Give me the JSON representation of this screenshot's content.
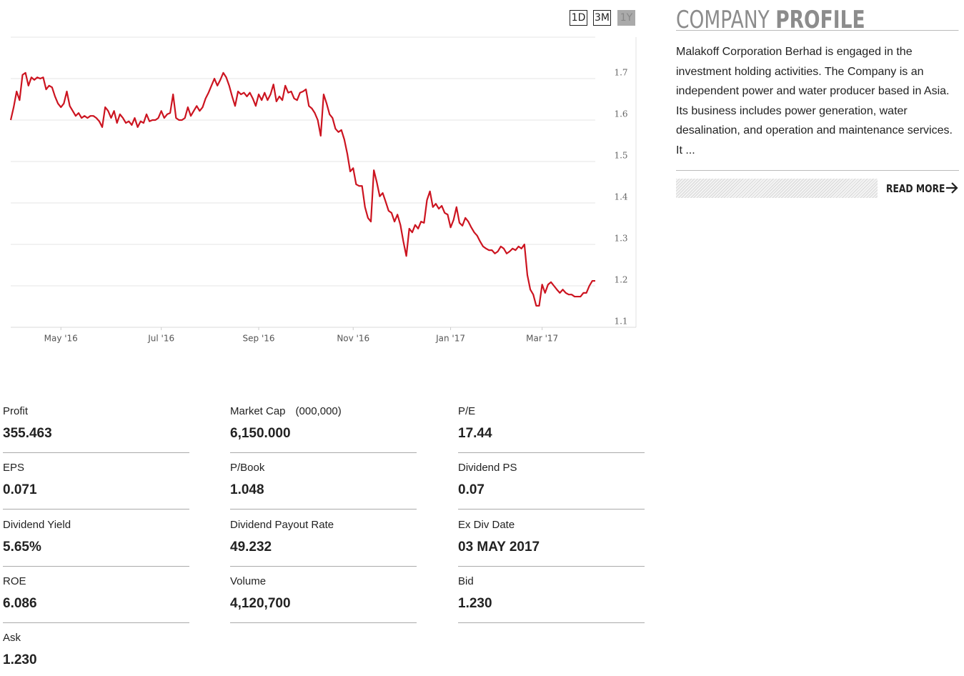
{
  "range_buttons": [
    {
      "label": "1D",
      "active": false
    },
    {
      "label": "3M",
      "active": false
    },
    {
      "label": "1Y",
      "active": true
    }
  ],
  "chart_data": {
    "type": "line",
    "color": "#cc1420",
    "grid": true,
    "ylim": [
      1.1,
      1.8
    ],
    "yticks": [
      1.1,
      1.2,
      1.3,
      1.4,
      1.5,
      1.6,
      1.7
    ],
    "categories": [
      null,
      null,
      null,
      null,
      null,
      null,
      null,
      null,
      null,
      null,
      null,
      null,
      null,
      null,
      null,
      null,
      null,
      "May '16",
      null,
      null,
      null,
      null,
      null,
      null,
      null,
      null,
      null,
      null,
      null,
      null,
      null,
      null,
      null,
      null,
      null,
      null,
      null,
      null,
      null,
      null,
      null,
      null,
      null,
      null,
      null,
      null,
      null,
      null,
      null,
      null,
      null,
      "Jul '16",
      null,
      null,
      null,
      null,
      null,
      null,
      null,
      null,
      null,
      null,
      null,
      null,
      null,
      null,
      null,
      null,
      null,
      null,
      null,
      null,
      null,
      null,
      null,
      null,
      null,
      null,
      null,
      null,
      null,
      null,
      null,
      null,
      "Sep '16",
      null,
      null,
      null,
      null,
      null,
      null,
      null,
      null,
      null,
      null,
      null,
      null,
      null,
      null,
      null,
      null,
      null,
      null,
      null,
      null,
      null,
      null,
      null,
      null,
      null,
      null,
      null,
      null,
      null,
      null,
      null,
      "Nov '16",
      null,
      null,
      null,
      null,
      null,
      null,
      null,
      null,
      null,
      null,
      null,
      null,
      null,
      null,
      null,
      null,
      null,
      null,
      null,
      null,
      null,
      null,
      null,
      null,
      null,
      null,
      null,
      null,
      null,
      null,
      null,
      null,
      "Jan '17",
      null,
      null,
      null,
      null,
      null,
      null,
      null,
      null,
      null,
      null,
      null,
      null,
      null,
      null,
      null,
      null,
      null,
      null,
      null,
      null,
      null,
      null,
      null,
      null,
      null,
      null,
      null,
      null,
      null,
      null,
      "Mar '17",
      null,
      null,
      null,
      null,
      null,
      null,
      null,
      null,
      null,
      null,
      null,
      null,
      null,
      null,
      null,
      null,
      null,
      null
    ],
    "values": [
      1.6,
      1.631,
      1.669,
      1.648,
      1.709,
      1.714,
      1.683,
      1.703,
      1.697,
      1.703,
      1.7,
      1.703,
      1.674,
      1.683,
      1.679,
      1.657,
      1.64,
      1.631,
      1.64,
      1.669,
      1.634,
      1.622,
      1.61,
      1.617,
      1.605,
      1.61,
      1.605,
      1.61,
      1.61,
      1.605,
      1.597,
      1.583,
      1.631,
      1.622,
      1.605,
      1.622,
      1.593,
      1.614,
      1.605,
      1.593,
      1.597,
      1.588,
      1.605,
      1.583,
      1.597,
      1.593,
      1.614,
      1.597,
      1.6,
      1.6,
      1.605,
      1.622,
      1.605,
      1.614,
      1.617,
      1.662,
      1.605,
      1.6,
      1.6,
      1.605,
      1.631,
      1.61,
      1.622,
      1.634,
      1.622,
      1.631,
      1.652,
      1.666,
      1.683,
      1.7,
      1.683,
      1.697,
      1.714,
      1.703,
      1.683,
      1.657,
      1.634,
      1.669,
      1.662,
      1.666,
      1.657,
      1.666,
      1.652,
      1.634,
      1.662,
      1.648,
      1.666,
      1.648,
      1.662,
      1.686,
      1.645,
      1.657,
      1.648,
      1.683,
      1.666,
      1.669,
      1.652,
      1.648,
      1.666,
      1.669,
      1.674,
      1.634,
      1.628,
      1.617,
      1.6,
      1.562,
      1.662,
      1.64,
      1.614,
      1.605,
      1.579,
      1.571,
      1.576,
      1.553,
      1.519,
      1.476,
      1.484,
      1.445,
      1.441,
      1.441,
      1.39,
      1.364,
      1.355,
      1.479,
      1.45,
      1.416,
      1.424,
      1.403,
      1.381,
      1.376,
      1.355,
      1.372,
      1.347,
      1.307,
      1.272,
      1.338,
      1.329,
      1.347,
      1.338,
      1.355,
      1.352,
      1.407,
      1.428,
      1.39,
      1.398,
      1.386,
      1.393,
      1.376,
      1.372,
      1.341,
      1.359,
      1.39,
      1.352,
      1.345,
      1.364,
      1.355,
      1.341,
      1.329,
      1.321,
      1.307,
      1.295,
      1.29,
      1.286,
      1.286,
      1.278,
      1.283,
      1.295,
      1.29,
      1.278,
      1.283,
      1.29,
      1.286,
      1.295,
      1.29,
      1.3,
      1.226,
      1.191,
      1.179,
      1.152,
      1.152,
      1.203,
      1.183,
      1.203,
      1.209,
      1.2,
      1.191,
      1.183,
      1.191,
      1.183,
      1.179,
      1.179,
      1.174,
      1.174,
      1.174,
      1.183,
      1.183,
      1.2,
      1.212,
      1.212
    ]
  },
  "company_profile": {
    "title_light": "COMPANY",
    "title_bold": "PROFILE",
    "description": "Malakoff Corporation Berhad is engaged in the investment holding activities. The Company is an independent power and water producer based in Asia. Its business includes power generation, water desalination, and operation and maintenance services. It ...",
    "read_more": "READ MORE"
  },
  "stats": [
    {
      "label": "Profit",
      "value": "355.463"
    },
    {
      "label": "Market Cap",
      "unit": "(000,000)",
      "value": "6,150.000"
    },
    {
      "label": "P/E",
      "value": "17.44"
    },
    {
      "label": "EPS",
      "value": "0.071"
    },
    {
      "label": "P/Book",
      "value": "1.048"
    },
    {
      "label": "Dividend PS",
      "value": "0.07"
    },
    {
      "label": "Dividend Yield",
      "value": "5.65%"
    },
    {
      "label": "Dividend Payout Rate",
      "value": "49.232"
    },
    {
      "label": "Ex Div Date",
      "value": "03 MAY 2017"
    },
    {
      "label": "ROE",
      "value": "6.086"
    },
    {
      "label": "Volume",
      "value": "4,120,700"
    },
    {
      "label": "Bid",
      "value": "1.230"
    },
    {
      "label": "Ask",
      "value": "1.230"
    }
  ]
}
